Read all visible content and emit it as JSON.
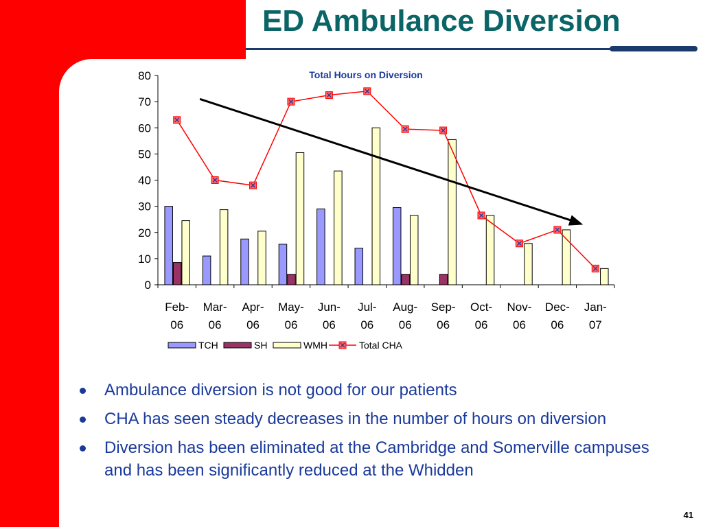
{
  "slide": {
    "title": "ED Ambulance Diversion",
    "page_number": "41",
    "bullets": [
      "Ambulance diversion is not good for our patients",
      "CHA has seen steady decreases in the number of hours on diversion",
      "Diversion has been eliminated at the Cambridge and Somerville campuses and has been significantly reduced at the Whidden"
    ]
  },
  "colors": {
    "title": "#0b6466",
    "accent_red": "#ff0000",
    "navy": "#1a3a6b",
    "bullet_text": "#1a3a9b",
    "tch": "#9999ff",
    "sh": "#993366",
    "wmh": "#ffffcc",
    "total_line": "#ff0000"
  },
  "chart_data": {
    "type": "bar",
    "title": "Total Hours on Diversion",
    "categories": [
      "Feb-06",
      "Mar-06",
      "Apr-06",
      "May-06",
      "Jun-06",
      "Jul-06",
      "Aug-06",
      "Sep-06",
      "Oct-06",
      "Nov-06",
      "Dec-06",
      "Jan-07"
    ],
    "ylim": [
      0,
      80
    ],
    "yticks": [
      0,
      10,
      20,
      30,
      40,
      50,
      60,
      70,
      80
    ],
    "series": [
      {
        "name": "TCH",
        "kind": "bar",
        "color": "#9999ff",
        "values": [
          30,
          11,
          17.5,
          15.5,
          29,
          14,
          29.5,
          0,
          0,
          0,
          0,
          0
        ]
      },
      {
        "name": "SH",
        "kind": "bar",
        "color": "#993366",
        "values": [
          8.5,
          0,
          0,
          4,
          0,
          0,
          4,
          4,
          0,
          0,
          0,
          0
        ]
      },
      {
        "name": "WMH",
        "kind": "bar",
        "color": "#ffffcc",
        "values": [
          24.5,
          28.7,
          20.5,
          50.5,
          43.5,
          60,
          26.5,
          55.5,
          26.5,
          15.8,
          21,
          6.2
        ]
      },
      {
        "name": "Total CHA",
        "kind": "line",
        "color": "#ff0000",
        "values": [
          63,
          40,
          38,
          70,
          72.5,
          74,
          59.5,
          59,
          26.5,
          15.8,
          21,
          6.2
        ]
      }
    ],
    "trend_arrow": {
      "from": {
        "category": "Mar-06",
        "y": 71
      },
      "to": {
        "category": "Jan-07",
        "y": 23
      }
    },
    "legend": "bottom",
    "grid": false
  }
}
